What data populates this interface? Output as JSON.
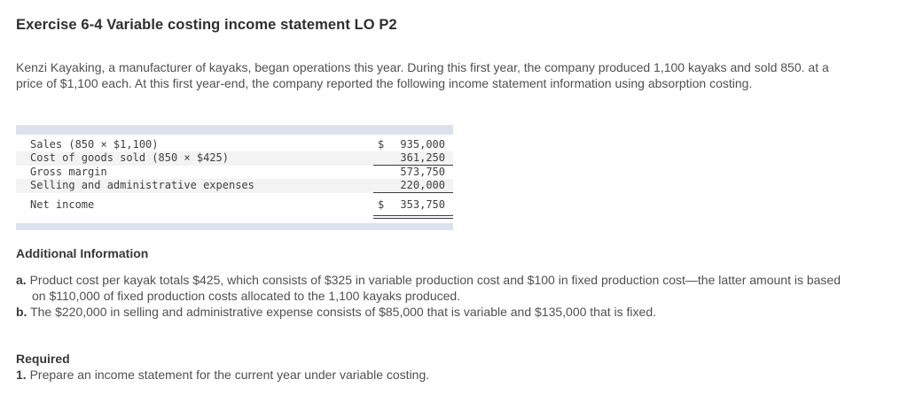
{
  "page": {
    "title": "Exercise 6-4 Variable costing income statement LO P2",
    "intro": "Kenzi Kayaking, a manufacturer of kayaks, began operations this year. During this first year, the company produced 1,100 kayaks and sold 850. at a price of $1,100 each. At this first year-end, the company reported the following income statement information using absorption costing."
  },
  "income_statement": {
    "rows": [
      {
        "label": "Sales (850 × $1,100)",
        "currency": "$",
        "amount": "935,000"
      },
      {
        "label": "Cost of goods sold (850 × $425)",
        "currency": "",
        "amount": "361,250"
      },
      {
        "label": "Gross margin",
        "currency": "",
        "amount": "573,750"
      },
      {
        "label": "Selling and administrative expenses",
        "currency": "",
        "amount": "220,000"
      },
      {
        "label": "Net income",
        "currency": "$",
        "amount": "353,750"
      }
    ]
  },
  "additional_information": {
    "heading": "Additional Information",
    "items": [
      {
        "marker": "a.",
        "text": "Product cost per kayak totals $425, which consists of $325 in variable production cost and $100 in fixed production cost—the latter amount is based on $110,000 of fixed production costs allocated to the 1,100 kayaks produced."
      },
      {
        "marker": "b.",
        "text": "The $220,000 in selling and administrative expense consists of $85,000 that is variable and $135,000 that is fixed."
      }
    ]
  },
  "required": {
    "heading": "Required",
    "items": [
      {
        "marker": "1.",
        "text": "Prepare an income statement for the current year under variable costing."
      }
    ]
  },
  "colors": {
    "table_strip": "#dce2ed",
    "row_shade": "#f3f3f3",
    "rule": "#3c3c3c"
  }
}
